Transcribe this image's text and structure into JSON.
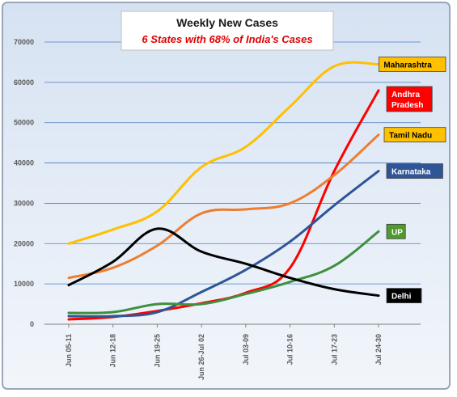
{
  "chart_data": {
    "type": "line",
    "title": "Weekly New Cases",
    "subtitle": "6 States with 68% of India's Cases",
    "categories": [
      "Jun 05-11",
      "Jun 12-18",
      "Jun 19-25",
      "Jun 26-Jul 02",
      "Jul 03-09",
      "Jul 10-16",
      "Jul 17-23",
      "Jul 24-30"
    ],
    "yticks": [
      "0",
      "10000",
      "20000",
      "30000",
      "40000",
      "50000",
      "60000",
      "70000"
    ],
    "ylim": [
      0,
      70000
    ],
    "grid": true,
    "series": [
      {
        "name": "Maharashtra",
        "color": "#FFC000",
        "label_bg": "#FFC000",
        "label_fg": "#000000",
        "values": [
          20000,
          23500,
          28000,
          39000,
          44000,
          54000,
          64000,
          64500
        ]
      },
      {
        "name": "Andhra Pradesh",
        "label_lines": [
          "Andhra",
          "Pradesh"
        ],
        "color": "#FF0000",
        "label_bg": "#FF0000",
        "label_fg": "#ffffff",
        "values": [
          1200,
          1800,
          3300,
          5200,
          7800,
          14000,
          38000,
          58000
        ]
      },
      {
        "name": "Tamil Nadu",
        "color": "#ED7D31",
        "label_bg": "#FFC000",
        "label_fg": "#000000",
        "values": [
          11500,
          14000,
          19500,
          27500,
          28500,
          30000,
          37000,
          47000
        ]
      },
      {
        "name": "Karnataka",
        "color": "#2F5597",
        "label_bg": "#2F5597",
        "label_fg": "#ffffff",
        "values": [
          2000,
          2000,
          3000,
          8000,
          13500,
          20500,
          29500,
          38000
        ]
      },
      {
        "name": "UP",
        "color": "#3E8F3E",
        "label_bg": "#4E9A2E",
        "label_fg": "#ffffff",
        "values": [
          2800,
          3000,
          5000,
          5000,
          7500,
          10500,
          14500,
          23000
        ]
      },
      {
        "name": "Delhi",
        "color": "#000000",
        "label_bg": "#000000",
        "label_fg": "#ffffff",
        "values": [
          9700,
          15500,
          23700,
          18000,
          15000,
          11500,
          8700,
          7100
        ]
      }
    ]
  }
}
